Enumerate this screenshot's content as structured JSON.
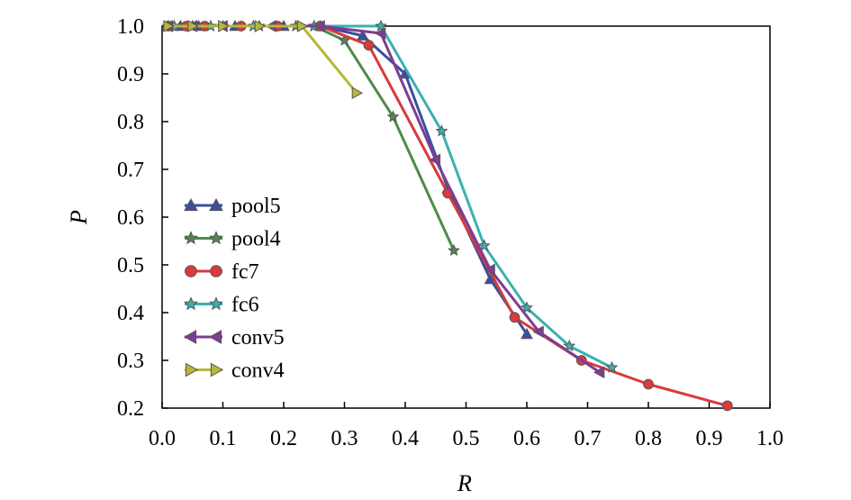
{
  "chart_data": {
    "type": "line",
    "title": "",
    "xlabel": "R",
    "ylabel": "P",
    "xlim": [
      0.0,
      1.0
    ],
    "ylim": [
      0.2,
      1.0
    ],
    "xticks": [
      "0.0",
      "0.1",
      "0.2",
      "0.3",
      "0.4",
      "0.5",
      "0.6",
      "0.7",
      "0.8",
      "0.9",
      "1.0"
    ],
    "yticks": [
      "0.2",
      "0.3",
      "0.4",
      "0.5",
      "0.6",
      "0.7",
      "0.8",
      "0.9",
      "1.0"
    ],
    "grid": false,
    "legend_position": "left-middle",
    "series": [
      {
        "name": "pool5",
        "color": "#3b4ea0",
        "marker": "triangle-up",
        "x": [
          0.01,
          0.03,
          0.06,
          0.12,
          0.2,
          0.26,
          0.33,
          0.4,
          0.47,
          0.54,
          0.6
        ],
        "y": [
          1.0,
          1.0,
          1.0,
          1.0,
          1.0,
          1.0,
          0.98,
          0.9,
          0.66,
          0.47,
          0.355
        ]
      },
      {
        "name": "pool4",
        "color": "#4f8a4a",
        "marker": "star",
        "x": [
          0.01,
          0.05,
          0.1,
          0.16,
          0.22,
          0.25,
          0.3,
          0.38,
          0.48
        ],
        "y": [
          1.0,
          1.0,
          1.0,
          1.0,
          1.0,
          1.0,
          0.97,
          0.81,
          0.53
        ]
      },
      {
        "name": "fc7",
        "color": "#d93a3a",
        "marker": "circle",
        "x": [
          0.01,
          0.04,
          0.07,
          0.13,
          0.19,
          0.26,
          0.34,
          0.47,
          0.58,
          0.69,
          0.8,
          0.93
        ],
        "y": [
          1.0,
          1.0,
          1.0,
          1.0,
          1.0,
          1.0,
          0.96,
          0.65,
          0.39,
          0.3,
          0.25,
          0.205
        ]
      },
      {
        "name": "fc6",
        "color": "#3cb0b0",
        "marker": "star",
        "x": [
          0.02,
          0.08,
          0.15,
          0.25,
          0.36,
          0.46,
          0.53,
          0.6,
          0.67,
          0.74
        ],
        "y": [
          1.0,
          1.0,
          1.0,
          1.0,
          1.0,
          0.78,
          0.54,
          0.41,
          0.33,
          0.285
        ]
      },
      {
        "name": "conv5",
        "color": "#7e3d94",
        "marker": "triangle-left",
        "x": [
          0.01,
          0.05,
          0.1,
          0.18,
          0.26,
          0.36,
          0.45,
          0.54,
          0.62,
          0.72
        ],
        "y": [
          1.0,
          1.0,
          1.0,
          1.0,
          1.0,
          0.985,
          0.72,
          0.49,
          0.36,
          0.275
        ]
      },
      {
        "name": "conv4",
        "color": "#b5b83a",
        "marker": "triangle-right",
        "x": [
          0.01,
          0.05,
          0.1,
          0.16,
          0.23,
          0.32
        ],
        "y": [
          1.0,
          1.0,
          1.0,
          1.0,
          1.0,
          0.86
        ]
      }
    ]
  }
}
